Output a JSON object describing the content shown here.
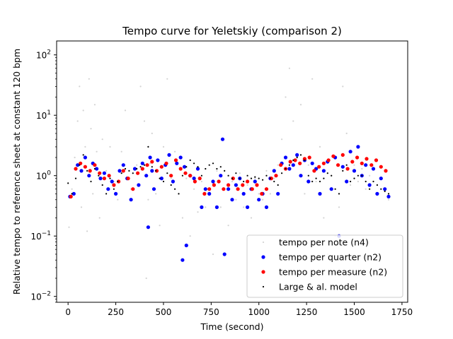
{
  "chart_data": {
    "type": "scatter",
    "title": "Tempo curve for Yeletskiy (comparison 2)",
    "xlabel": "Time (second)",
    "ylabel": "Relative tempo to reference sheet at constant 120 bpm",
    "xlim": [
      -60,
      1780
    ],
    "ylim": [
      0.008,
      170
    ],
    "yscale": "log",
    "grid": false,
    "legend_position": "lower-right",
    "x_ticks": [
      {
        "value": 0,
        "label": "0"
      },
      {
        "value": 250,
        "label": "250"
      },
      {
        "value": 500,
        "label": "500"
      },
      {
        "value": 750,
        "label": "750"
      },
      {
        "value": 1000,
        "label": "1000"
      },
      {
        "value": 1250,
        "label": "1250"
      },
      {
        "value": 1500,
        "label": "1500"
      },
      {
        "value": 1750,
        "label": "1750"
      }
    ],
    "y_ticks": [
      {
        "value": 0.01,
        "base": "10",
        "exp": "−2"
      },
      {
        "value": 0.1,
        "base": "10",
        "exp": "−1"
      },
      {
        "value": 1,
        "base": "10",
        "exp": "0"
      },
      {
        "value": 10,
        "base": "10",
        "exp": "1"
      },
      {
        "value": 100,
        "base": "10",
        "exp": "2"
      }
    ],
    "series": [
      {
        "name": "tempo per note (n4)",
        "color": "#d3d3d3",
        "marker": "dot",
        "x": [
          5,
          20,
          35,
          50,
          60,
          70,
          80,
          90,
          100,
          110,
          120,
          130,
          140,
          150,
          165,
          180,
          200,
          220,
          240,
          260,
          280,
          300,
          330,
          360,
          380,
          400,
          410,
          420,
          430,
          440,
          460,
          480,
          500,
          520,
          540,
          560,
          580,
          600,
          620,
          640,
          660,
          680,
          700,
          720,
          740,
          760,
          780,
          800,
          820,
          840,
          860,
          880,
          900,
          920,
          940,
          960,
          980,
          1000,
          1020,
          1040,
          1060,
          1080,
          1100,
          1120,
          1140,
          1160,
          1180,
          1200,
          1220,
          1240,
          1260,
          1280,
          1300,
          1320,
          1340,
          1360,
          1380,
          1400,
          1420,
          1440,
          1460,
          1480,
          1500,
          1520,
          1540,
          1560,
          1580,
          1600,
          1620,
          1640,
          1660,
          1680
        ],
        "y": [
          0.14,
          0.6,
          2.0,
          8.0,
          30.0,
          0.3,
          12.0,
          3.0,
          0.12,
          40.0,
          6.0,
          0.5,
          15.0,
          2.5,
          0.2,
          4.0,
          1.2,
          3.0,
          0.8,
          0.4,
          2.5,
          12.0,
          0.6,
          1.5,
          30.0,
          8.0,
          0.02,
          0.4,
          1.6,
          5.0,
          0.5,
          0.15,
          3.0,
          40.0,
          0.9,
          2.5,
          0.5,
          0.2,
          0.9,
          0.1,
          0.6,
          0.25,
          0.8,
          0.3,
          0.5,
          0.05,
          1.2,
          0.3,
          0.6,
          0.15,
          0.8,
          0.4,
          1.1,
          0.3,
          0.7,
          0.2,
          0.9,
          0.5,
          0.4,
          1.2,
          0.5,
          0.9,
          1.5,
          4.0,
          20.0,
          60.0,
          8.0,
          2.0,
          15.0,
          0.5,
          1.5,
          40.0,
          0.8,
          3.0,
          0.2,
          0.05,
          1.0,
          0.1,
          0.3,
          30.0,
          5.0,
          0.7,
          1.5,
          0.8,
          1.3,
          0.6,
          1.0,
          0.8,
          0.5,
          0.9,
          0.6,
          0.4
        ]
      },
      {
        "name": "tempo per quarter (n2)",
        "color": "#0000ff",
        "marker": "circle",
        "x": [
          10,
          30,
          50,
          70,
          90,
          110,
          130,
          150,
          170,
          190,
          210,
          230,
          250,
          270,
          290,
          310,
          330,
          350,
          370,
          390,
          410,
          420,
          430,
          440,
          450,
          470,
          490,
          510,
          530,
          550,
          570,
          590,
          600,
          610,
          620,
          640,
          660,
          680,
          700,
          720,
          740,
          760,
          780,
          800,
          810,
          820,
          840,
          860,
          880,
          900,
          920,
          940,
          960,
          980,
          1000,
          1020,
          1040,
          1060,
          1080,
          1100,
          1120,
          1140,
          1160,
          1180,
          1200,
          1220,
          1240,
          1260,
          1280,
          1300,
          1320,
          1340,
          1360,
          1380,
          1400,
          1420,
          1440,
          1460,
          1480,
          1500,
          1520,
          1540,
          1560,
          1580,
          1600,
          1620,
          1640,
          1660,
          1680
        ],
        "y": [
          0.45,
          0.5,
          1.5,
          1.2,
          2.0,
          1.0,
          1.6,
          1.3,
          0.9,
          1.1,
          0.6,
          0.8,
          0.5,
          1.2,
          1.5,
          0.9,
          0.4,
          1.3,
          0.7,
          1.6,
          1.0,
          0.14,
          2.0,
          1.2,
          0.6,
          1.8,
          0.9,
          1.5,
          2.2,
          0.8,
          1.6,
          2.0,
          0.04,
          1.4,
          0.07,
          1.0,
          0.9,
          1.3,
          0.3,
          0.6,
          0.5,
          0.8,
          0.3,
          1.0,
          4.0,
          0.05,
          0.6,
          0.4,
          0.7,
          0.9,
          0.5,
          0.3,
          0.6,
          0.8,
          0.4,
          0.5,
          0.3,
          0.9,
          1.2,
          0.5,
          1.6,
          2.0,
          1.3,
          1.5,
          2.2,
          1.0,
          1.8,
          0.8,
          1.6,
          1.3,
          0.5,
          1.2,
          1.7,
          0.6,
          2.0,
          0.1,
          1.4,
          0.8,
          2.5,
          1.2,
          3.0,
          1.0,
          1.5,
          0.7,
          1.3,
          0.5,
          0.9,
          0.6,
          0.45
        ]
      },
      {
        "name": "tempo per measure (n2)",
        "color": "#ff0000",
        "marker": "circle",
        "x": [
          15,
          40,
          65,
          90,
          115,
          140,
          165,
          190,
          215,
          240,
          265,
          290,
          315,
          340,
          365,
          390,
          415,
          440,
          465,
          490,
          515,
          540,
          565,
          590,
          615,
          640,
          665,
          690,
          715,
          740,
          765,
          790,
          815,
          840,
          865,
          890,
          915,
          940,
          965,
          990,
          1015,
          1040,
          1065,
          1090,
          1115,
          1140,
          1165,
          1190,
          1215,
          1240,
          1265,
          1290,
          1315,
          1340,
          1365,
          1390,
          1415,
          1440,
          1465,
          1490,
          1515,
          1540,
          1565,
          1590,
          1615,
          1640,
          1665
        ],
        "y": [
          0.45,
          1.3,
          1.6,
          1.4,
          1.2,
          1.5,
          1.1,
          0.9,
          1.0,
          0.7,
          0.8,
          1.2,
          0.9,
          0.6,
          1.1,
          1.3,
          1.5,
          1.7,
          1.2,
          1.4,
          1.6,
          1.0,
          1.8,
          1.3,
          1.1,
          1.0,
          0.8,
          0.9,
          0.5,
          0.6,
          0.7,
          0.8,
          0.6,
          0.7,
          0.9,
          0.6,
          0.7,
          0.8,
          0.6,
          0.7,
          0.5,
          0.6,
          0.9,
          1.0,
          1.5,
          1.3,
          1.7,
          1.8,
          1.6,
          1.9,
          2.0,
          1.2,
          1.4,
          1.6,
          1.8,
          2.1,
          1.5,
          2.2,
          1.3,
          1.7,
          2.0,
          1.6,
          1.9,
          1.5,
          1.8,
          1.4,
          1.2
        ]
      },
      {
        "name": "Large & al. model",
        "color": "#000000",
        "marker": "dot",
        "x": [
          0,
          20,
          40,
          60,
          80,
          100,
          120,
          140,
          160,
          180,
          200,
          220,
          240,
          260,
          280,
          300,
          320,
          340,
          360,
          380,
          400,
          420,
          440,
          460,
          480,
          500,
          520,
          540,
          560,
          580,
          600,
          620,
          640,
          660,
          680,
          700,
          720,
          740,
          760,
          780,
          800,
          820,
          840,
          860,
          880,
          900,
          920,
          940,
          960,
          980,
          1000,
          1020,
          1040,
          1060,
          1080,
          1100,
          1120,
          1140,
          1160,
          1180,
          1200,
          1220,
          1240,
          1260,
          1280,
          1300,
          1320,
          1340,
          1360,
          1380,
          1400,
          1420,
          1440,
          1460,
          1480,
          1500,
          1520,
          1540,
          1560,
          1580,
          1600,
          1620,
          1640,
          1660,
          1680
        ],
        "y": [
          0.75,
          0.5,
          0.9,
          1.5,
          2.2,
          1.2,
          0.8,
          1.3,
          1.0,
          0.7,
          0.5,
          0.9,
          0.6,
          0.8,
          1.1,
          1.3,
          1.2,
          1.1,
          1.3,
          1.4,
          1.5,
          3.0,
          1.4,
          1.2,
          0.9,
          0.8,
          1.1,
          0.7,
          0.6,
          0.5,
          1.0,
          1.4,
          1.8,
          1.6,
          1.4,
          1.0,
          1.3,
          1.5,
          1.6,
          1.3,
          1.4,
          1.2,
          1.0,
          0.9,
          1.1,
          0.9,
          0.8,
          1.0,
          0.9,
          0.95,
          0.9,
          0.85,
          1.0,
          0.9,
          0.8,
          0.7,
          1.1,
          1.3,
          1.5,
          1.8,
          2.0,
          2.2,
          1.8,
          1.0,
          0.8,
          0.9,
          0.8,
          0.9,
          1.1,
          1.0,
          0.6,
          0.5,
          1.2,
          1.5,
          0.8,
          0.9,
          1.0,
          1.0,
          0.8,
          0.6,
          0.8,
          0.7,
          0.6,
          0.55,
          0.5
        ]
      }
    ]
  }
}
